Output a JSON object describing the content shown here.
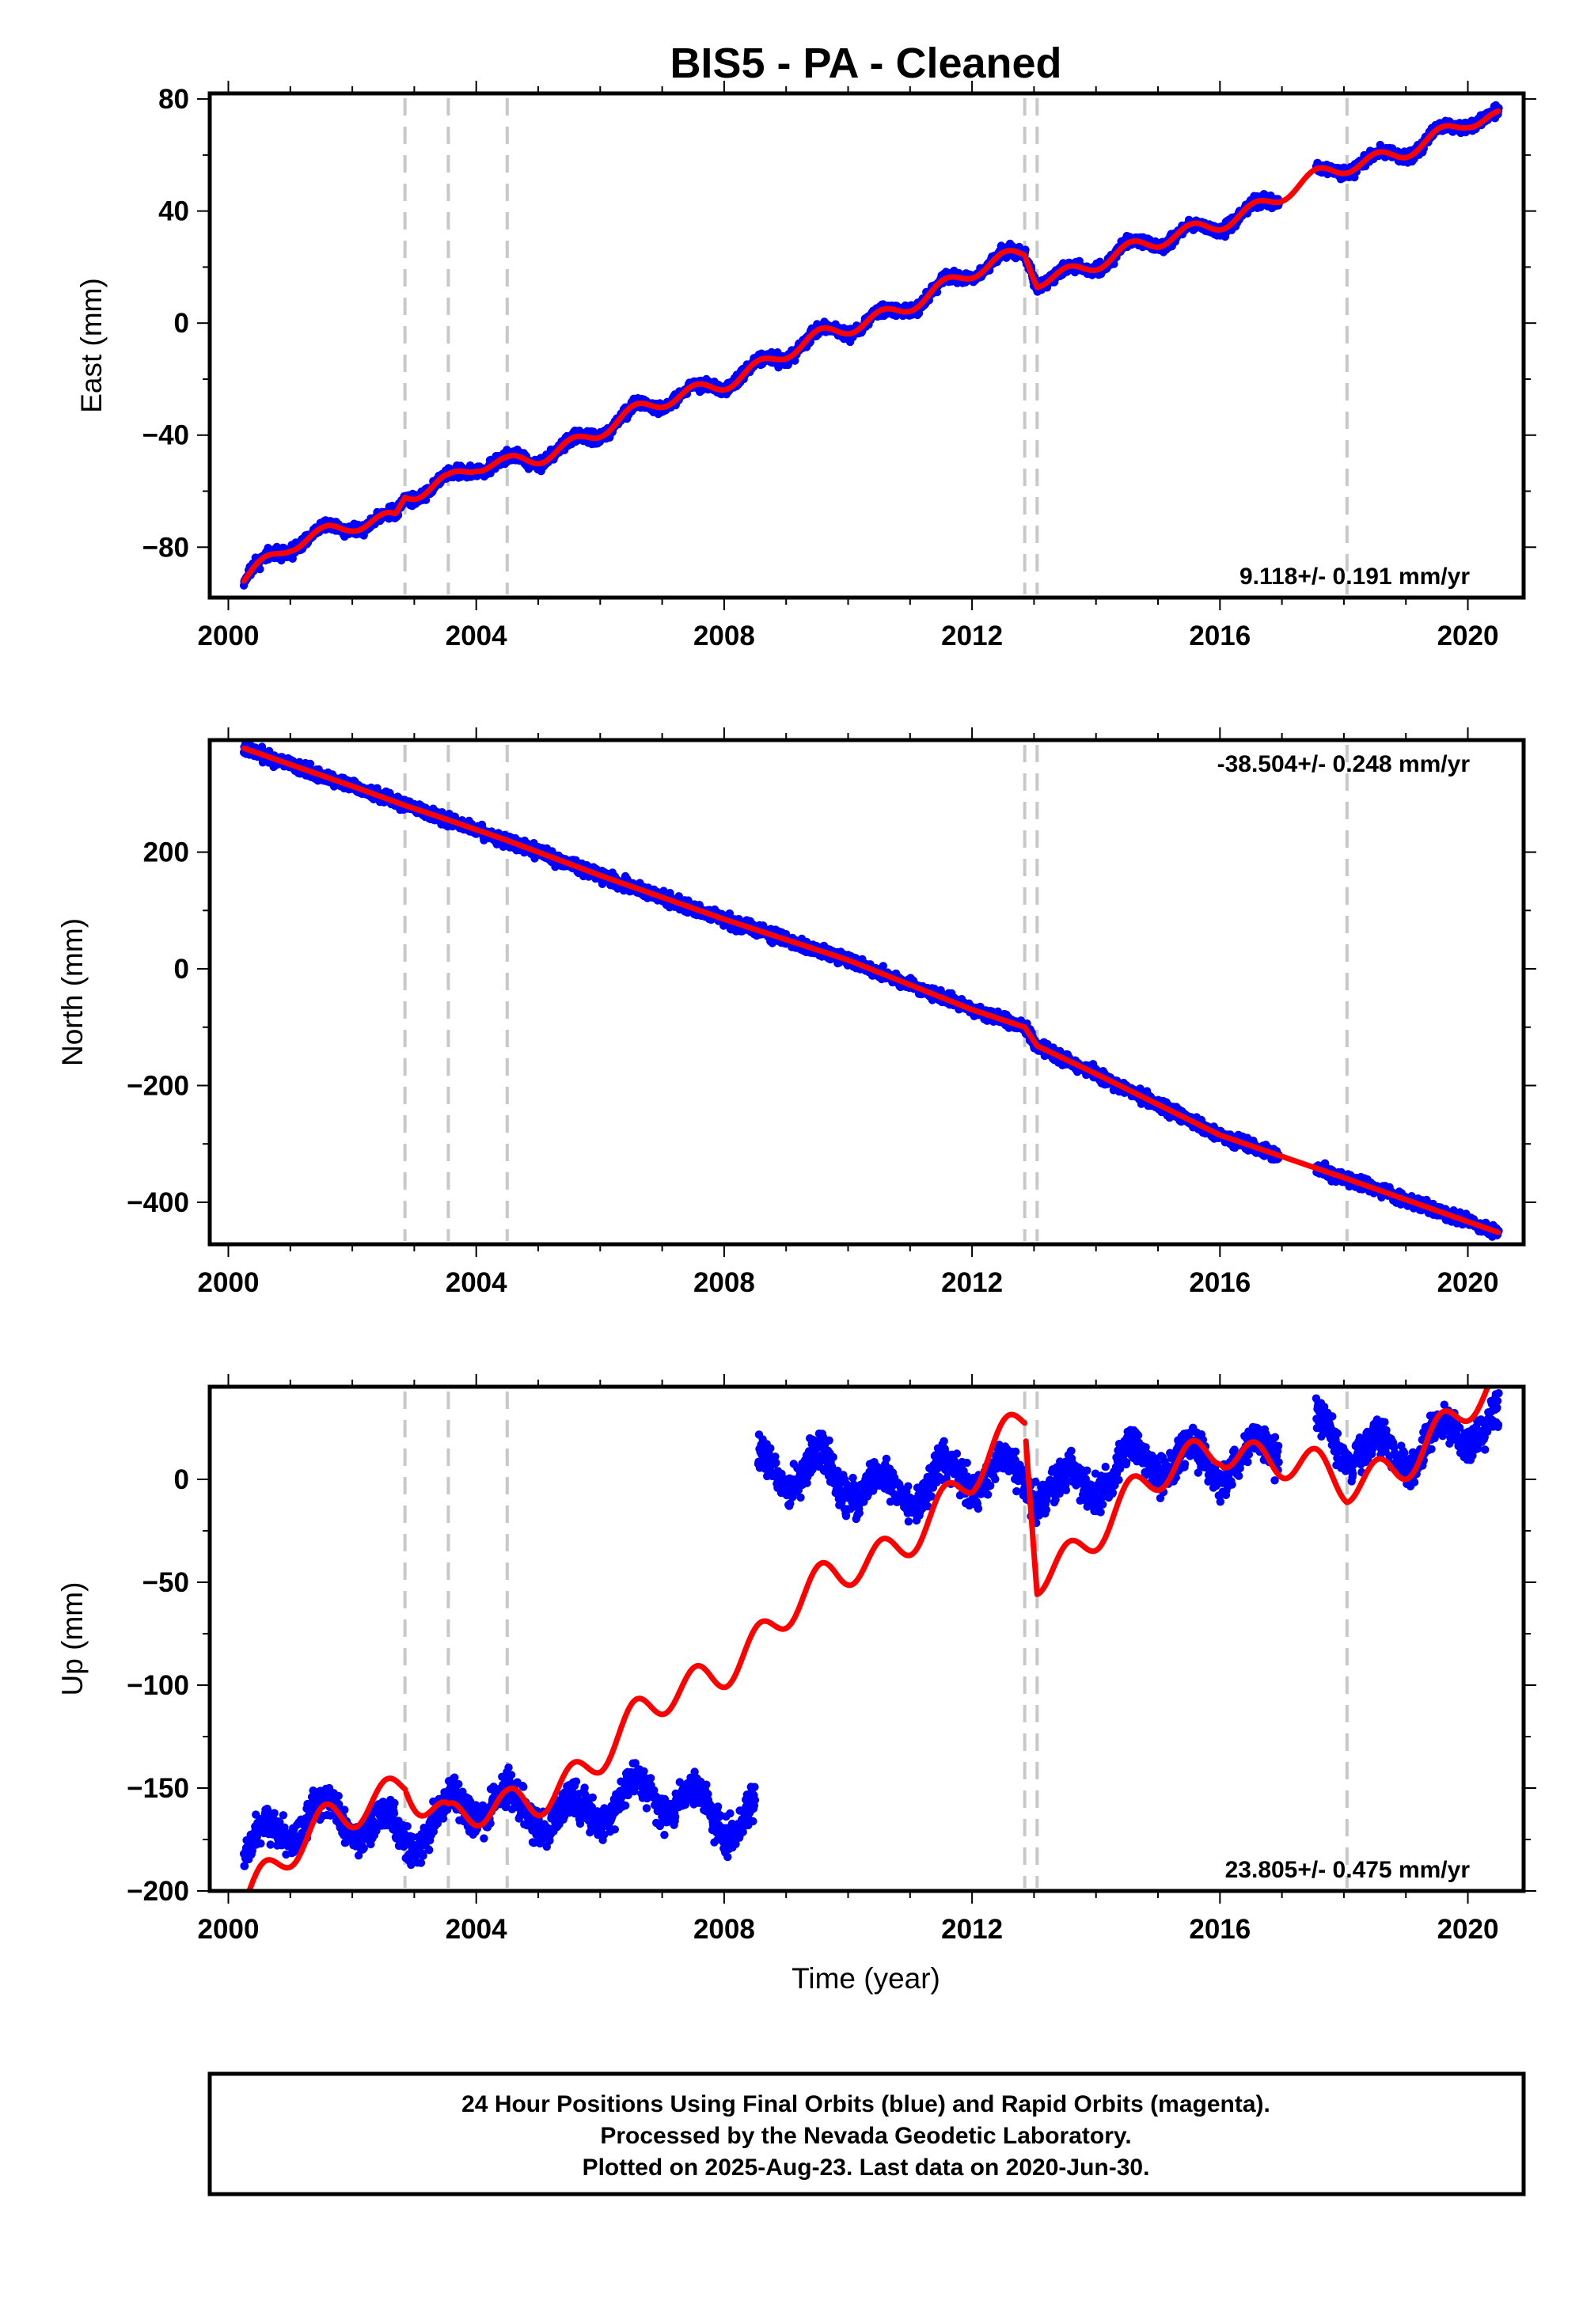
{
  "title": "BIS5  - PA - Cleaned",
  "x_axis_label": "Time (year)",
  "colors": {
    "data": "#0000ff",
    "model": "#ff0000",
    "breaks": "#c8c8c8"
  },
  "chart_data": [
    {
      "type": "scatter",
      "name": "east",
      "ylabel": "East (mm)",
      "rate_label": "9.118+/- 0.191 mm/yr",
      "xlim": [
        1999.7,
        2020.9
      ],
      "ylim": [
        -98,
        82
      ],
      "xticks": [
        2000,
        2004,
        2008,
        2012,
        2016,
        2020
      ],
      "yticks": [
        -80,
        -40,
        0,
        40,
        80
      ],
      "ytick_labels": [
        "−80",
        "−40",
        "0",
        "40",
        "80"
      ],
      "breaks": [
        2002.85,
        2003.55,
        2004.5,
        2012.85,
        2013.05,
        2018.05
      ],
      "gaps": [
        [
          2016.95,
          2017.55
        ]
      ],
      "series": [
        {
          "name": "data",
          "x": [
            2000.25,
            2001.0,
            2001.5,
            2002.0,
            2002.7,
            2002.85,
            2003.5,
            2003.55,
            2004.0,
            2004.5,
            2005.0,
            2006.0,
            2007.0,
            2008.0,
            2009.0,
            2010.0,
            2011.0,
            2012.0,
            2012.85,
            2013.05,
            2014.0,
            2015.0,
            2016.0,
            2016.95,
            2017.55,
            2018.0,
            2019.0,
            2020.0,
            2020.5
          ],
          "y": [
            -90,
            -80,
            -77,
            -72,
            -68,
            -60,
            -57,
            -57,
            -52,
            -51,
            -47,
            -38,
            -29,
            -20,
            -11,
            -2,
            8,
            17,
            25,
            16,
            22,
            28,
            37,
            45,
            51,
            55,
            63,
            71,
            72
          ]
        },
        {
          "name": "model",
          "x": [
            2000.25,
            2001.0,
            2001.5,
            2002.0,
            2002.7,
            2002.85,
            2003.5,
            2003.55,
            2004.0,
            2004.5,
            2005.0,
            2006.0,
            2007.0,
            2008.0,
            2009.0,
            2010.0,
            2011.0,
            2012.0,
            2012.85,
            2013.05,
            2014.0,
            2015.0,
            2016.0,
            2016.95,
            2017.55,
            2018.0,
            2019.0,
            2020.0,
            2020.5
          ],
          "y": [
            -90,
            -80,
            -77,
            -72,
            -68,
            -60,
            -57,
            -57,
            -52,
            -51,
            -47,
            -38,
            -29,
            -20,
            -11,
            -2,
            8,
            17,
            25,
            16,
            22,
            28,
            37,
            45,
            51,
            55,
            63,
            71,
            72
          ]
        }
      ]
    },
    {
      "type": "scatter",
      "name": "north",
      "ylabel": "North (mm)",
      "rate_label": "-38.504+/- 0.248 mm/yr",
      "xlim": [
        1999.7,
        2020.9
      ],
      "ylim": [
        -472,
        392
      ],
      "xticks": [
        2000,
        2004,
        2008,
        2012,
        2016,
        2020
      ],
      "yticks": [
        -400,
        -200,
        0,
        200
      ],
      "ytick_labels": [
        "−400",
        "−200",
        "0",
        "200"
      ],
      "breaks": [
        2002.85,
        2003.55,
        2004.5,
        2012.85,
        2013.05,
        2018.05
      ],
      "gaps": [
        [
          2016.95,
          2017.55
        ]
      ],
      "series": [
        {
          "name": "data",
          "x": [
            2000.25,
            2002.0,
            2002.85,
            2003.55,
            2004.5,
            2006.0,
            2008.0,
            2010.0,
            2012.0,
            2012.85,
            2013.05,
            2014.0,
            2016.0,
            2018.0,
            2020.5
          ],
          "y": [
            378,
            313,
            280,
            255,
            220,
            160,
            85,
            15,
            -70,
            -100,
            -132,
            -180,
            -285,
            -358,
            -452
          ]
        },
        {
          "name": "model",
          "x": [
            2000.25,
            2002.0,
            2002.85,
            2003.55,
            2004.5,
            2006.0,
            2008.0,
            2010.0,
            2012.0,
            2012.85,
            2013.05,
            2014.0,
            2016.0,
            2018.0,
            2020.5
          ],
          "y": [
            378,
            313,
            280,
            255,
            220,
            160,
            85,
            15,
            -70,
            -100,
            -132,
            -180,
            -285,
            -358,
            -452
          ]
        }
      ]
    },
    {
      "type": "scatter",
      "name": "up",
      "ylabel": "Up (mm)",
      "rate_label": "23.805+/- 0.475 mm/yr",
      "xlim": [
        1999.7,
        2020.9
      ],
      "ylim": [
        -200,
        45
      ],
      "xticks": [
        2000,
        2004,
        2008,
        2012,
        2016,
        2020
      ],
      "yticks": [
        -200,
        -150,
        -100,
        -50,
        0
      ],
      "ytick_labels": [
        "−200",
        "−150",
        "−100",
        "−50",
        "0"
      ],
      "breaks": [
        2002.85,
        2003.55,
        2004.5,
        2012.85,
        2013.05,
        2018.05
      ],
      "gaps": [
        [
          2008.55,
          2008.55
        ],
        [
          2016.95,
          2017.55
        ]
      ],
      "series": [
        {
          "name": "data",
          "x": [
            2000.25,
            2001.0,
            2002.0,
            2003.0,
            2004.0,
            2005.0,
            2006.0,
            2007.0,
            2008.0,
            2008.5,
            2008.55,
            2009.0,
            2010.0,
            2011.0,
            2012.0,
            2013.0,
            2014.0,
            2015.0,
            2016.0,
            2016.95,
            2017.55,
            2018.0,
            2019.0,
            2020.0,
            2020.5
          ],
          "y": [
            -178,
            -170,
            -165,
            -168,
            -163,
            -160,
            -158,
            -157,
            -160,
            -162,
            5,
            2,
            -3,
            0,
            -2,
            0,
            3,
            5,
            12,
            16,
            20,
            15,
            18,
            22,
            20
          ]
        },
        {
          "name": "model",
          "x": [
            2000.25,
            2002.85,
            2003.55,
            2004.5,
            2006.0,
            2008.0,
            2010.0,
            2012.0,
            2012.85,
            2013.05,
            2016.0,
            2018.05,
            2020.5
          ],
          "y": [
            -200,
            -143,
            -168,
            -162,
            -133,
            -88,
            -45,
            -3,
            30,
            -45,
            20,
            -5,
            42
          ]
        }
      ]
    }
  ],
  "footer": {
    "line1": "24 Hour Positions Using Final Orbits (blue) and Rapid Orbits (magenta).",
    "line2": "Processed by the Nevada Geodetic Laboratory.",
    "line3": "Plotted on 2025-Aug-23. Last data on 2020-Jun-30."
  }
}
